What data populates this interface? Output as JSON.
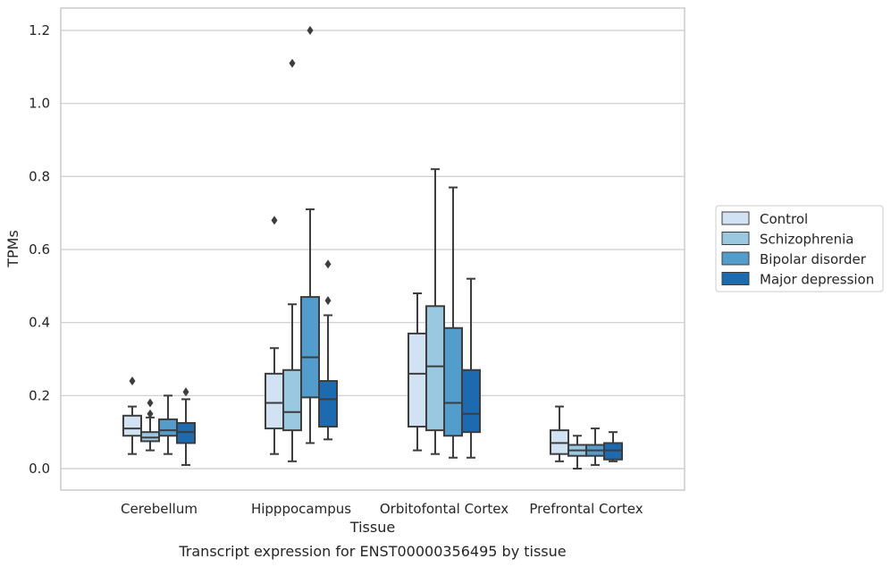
{
  "chart_data": {
    "type": "boxplot",
    "caption": "Transcript expression for ENST00000356495 by tissue",
    "xlabel": "Tissue",
    "ylabel": "TPMs",
    "ylim": [
      -0.06,
      1.26
    ],
    "yticks": [
      0.0,
      0.2,
      0.4,
      0.6,
      0.8,
      1.0,
      1.2
    ],
    "ytick_labels": [
      "0.0",
      "0.2",
      "0.4",
      "0.6",
      "0.8",
      "1.0",
      "1.2"
    ],
    "grid": "horizontal",
    "legend_position": "right",
    "categories": [
      "Cerebellum",
      "Hipppocampus",
      "Orbitofontal Cortex",
      "Prefrontal Cortex"
    ],
    "series": [
      {
        "name": "Control",
        "color": "#d1e3f3",
        "boxes": [
          {
            "whislo": 0.04,
            "q1": 0.09,
            "med": 0.11,
            "q3": 0.145,
            "whishi": 0.17,
            "fliers": [
              0.24
            ]
          },
          {
            "whislo": 0.04,
            "q1": 0.11,
            "med": 0.18,
            "q3": 0.26,
            "whishi": 0.33,
            "fliers": [
              0.68
            ]
          },
          {
            "whislo": 0.05,
            "q1": 0.115,
            "med": 0.26,
            "q3": 0.37,
            "whishi": 0.48,
            "fliers": []
          },
          {
            "whislo": 0.02,
            "q1": 0.04,
            "med": 0.07,
            "q3": 0.105,
            "whishi": 0.17,
            "fliers": []
          }
        ]
      },
      {
        "name": "Schizophrenia",
        "color": "#9ac8e0",
        "boxes": [
          {
            "whislo": 0.05,
            "q1": 0.075,
            "med": 0.085,
            "q3": 0.1,
            "whishi": 0.14,
            "fliers": [
              0.15,
              0.18
            ]
          },
          {
            "whislo": 0.02,
            "q1": 0.105,
            "med": 0.155,
            "q3": 0.27,
            "whishi": 0.45,
            "fliers": [
              1.11
            ]
          },
          {
            "whislo": 0.04,
            "q1": 0.105,
            "med": 0.28,
            "q3": 0.445,
            "whishi": 0.82,
            "fliers": []
          },
          {
            "whislo": 0.0,
            "q1": 0.035,
            "med": 0.05,
            "q3": 0.065,
            "whishi": 0.09,
            "fliers": []
          }
        ]
      },
      {
        "name": "Bipolar disorder",
        "color": "#529dcc",
        "boxes": [
          {
            "whislo": 0.04,
            "q1": 0.09,
            "med": 0.105,
            "q3": 0.135,
            "whishi": 0.2,
            "fliers": []
          },
          {
            "whislo": 0.07,
            "q1": 0.195,
            "med": 0.305,
            "q3": 0.47,
            "whishi": 0.71,
            "fliers": [
              1.2
            ]
          },
          {
            "whislo": 0.03,
            "q1": 0.09,
            "med": 0.18,
            "q3": 0.385,
            "whishi": 0.77,
            "fliers": []
          },
          {
            "whislo": 0.01,
            "q1": 0.035,
            "med": 0.05,
            "q3": 0.065,
            "whishi": 0.11,
            "fliers": []
          }
        ]
      },
      {
        "name": "Major depression",
        "color": "#1c6aaf",
        "boxes": [
          {
            "whislo": 0.01,
            "q1": 0.07,
            "med": 0.1,
            "q3": 0.125,
            "whishi": 0.19,
            "fliers": [
              0.21
            ]
          },
          {
            "whislo": 0.08,
            "q1": 0.115,
            "med": 0.19,
            "q3": 0.24,
            "whishi": 0.42,
            "fliers": [
              0.46,
              0.56
            ]
          },
          {
            "whislo": 0.03,
            "q1": 0.1,
            "med": 0.15,
            "q3": 0.27,
            "whishi": 0.52,
            "fliers": []
          },
          {
            "whislo": 0.02,
            "q1": 0.025,
            "med": 0.05,
            "q3": 0.07,
            "whishi": 0.1,
            "fliers": []
          }
        ]
      }
    ]
  }
}
